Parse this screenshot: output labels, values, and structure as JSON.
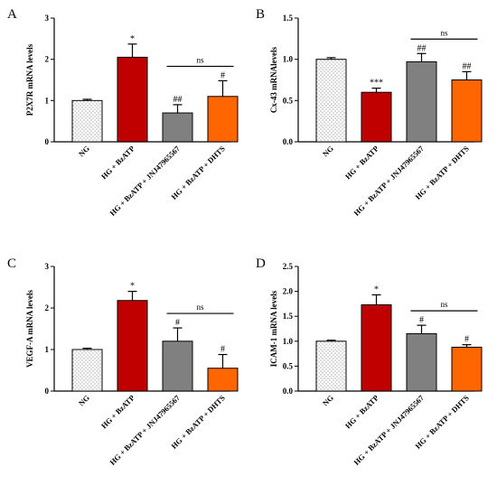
{
  "figure": {
    "pattern_color": "#555555",
    "colors": {
      "NG": "#ffffff",
      "HG + BzATP": "#c00000",
      "HG + BzATP + JNJ47965567": "#808080",
      "HG + BzATP + DHTS": "#ff6600"
    }
  },
  "chart_data": [
    {
      "panel": "A",
      "type": "bar",
      "categories": [
        "NG",
        "HG + BzATP",
        "HG + BzATP + JNJ47965567",
        "HG + BzATP + DHTS"
      ],
      "values": [
        1.0,
        2.05,
        0.7,
        1.1
      ],
      "errors": [
        0.03,
        0.32,
        0.2,
        0.38
      ],
      "annotations": [
        "",
        "*",
        "##",
        "#"
      ],
      "ns_bracket": [
        2,
        3
      ],
      "ns_label": "ns",
      "xlabel": "",
      "ylabel": "P2X7R mRNA levels",
      "ylim": [
        0,
        3
      ],
      "yticks": [
        0,
        1,
        2,
        3
      ],
      "ytick_labels": [
        "0",
        "1",
        "2",
        "3"
      ]
    },
    {
      "panel": "B",
      "type": "bar",
      "categories": [
        "NG",
        "HG + BzATP",
        "HG + BzATP + JNJ47965567",
        "HG + BzATP + DHTS"
      ],
      "values": [
        1.0,
        0.6,
        0.97,
        0.75
      ],
      "errors": [
        0.02,
        0.05,
        0.1,
        0.1
      ],
      "annotations": [
        "",
        "***",
        "##",
        "##"
      ],
      "ns_bracket": [
        2,
        3
      ],
      "ns_label": "ns",
      "xlabel": "",
      "ylabel": "Cx-43 mRNAlevels",
      "ylim": [
        0,
        1.5
      ],
      "yticks": [
        0,
        0.5,
        1.0,
        1.5
      ],
      "ytick_labels": [
        "0.0",
        "0.5",
        "1.0",
        "1.5"
      ]
    },
    {
      "panel": "C",
      "type": "bar",
      "categories": [
        "NG",
        "HG + BzATP",
        "HG + BzATP + JNJ47965567",
        "HG + BzATP + DHTS"
      ],
      "values": [
        1.0,
        2.18,
        1.2,
        0.55
      ],
      "errors": [
        0.03,
        0.22,
        0.32,
        0.33
      ],
      "annotations": [
        "",
        "*",
        "#",
        "#"
      ],
      "ns_bracket": [
        2,
        3
      ],
      "ns_label": "ns",
      "xlabel": "",
      "ylabel": "VEGF-A mRNA levels",
      "ylim": [
        0,
        3
      ],
      "yticks": [
        0,
        1,
        2,
        3
      ],
      "ytick_labels": [
        "0",
        "1",
        "2",
        "3"
      ]
    },
    {
      "panel": "D",
      "type": "bar",
      "categories": [
        "NG",
        "HG + BzATP",
        "HG + BzATP + JNJ47965567",
        "HG + BzATP + DHTS"
      ],
      "values": [
        1.0,
        1.73,
        1.15,
        0.88
      ],
      "errors": [
        0.02,
        0.2,
        0.17,
        0.05
      ],
      "annotations": [
        "",
        "*",
        "#",
        "#"
      ],
      "ns_bracket": [
        2,
        3
      ],
      "ns_label": "ns",
      "xlabel": "",
      "ylabel": "ICAM-1 mRNA levels",
      "ylim": [
        0,
        2.5
      ],
      "yticks": [
        0,
        0.5,
        1.0,
        1.5,
        2.0,
        2.5
      ],
      "ytick_labels": [
        "0.0",
        "0.5",
        "1.0",
        "1.5",
        "2.0",
        "2.5"
      ]
    }
  ]
}
